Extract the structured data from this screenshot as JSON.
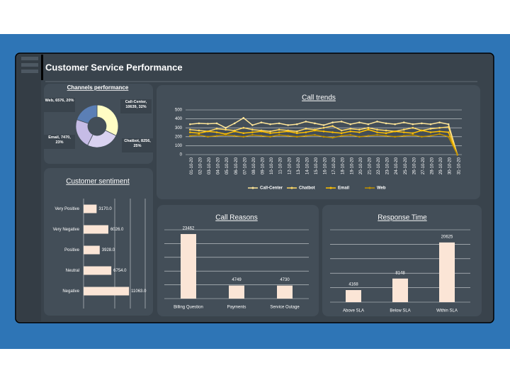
{
  "header": {
    "title": "Customer Service Performance"
  },
  "chart_data": [
    {
      "type": "donut",
      "title": "Channels performance",
      "categories": [
        "Call-Center",
        "Chatbot",
        "Email",
        "Web"
      ],
      "values": [
        10639,
        8256,
        7470,
        6576
      ],
      "value_labels": [
        "Call-Center, 10639, 32%",
        "Chatbot, 8256, 25%",
        "Email, 7470, 23%",
        "Web, 6576, 20%"
      ],
      "colors": [
        "#fffdc4",
        "#d9d2f0",
        "#c6bce6",
        "#5b7fb5"
      ]
    },
    {
      "type": "line",
      "title": "Call trends",
      "x": [
        "01-10-20",
        "02-10-20",
        "03-10-20",
        "04-10-20",
        "05-10-20",
        "06-10-20",
        "07-10-20",
        "08-10-20",
        "09-10-20",
        "10-10-20",
        "11-10-20",
        "12-10-20",
        "13-10-20",
        "14-10-20",
        "15-10-20",
        "16-10-20",
        "17-10-20",
        "18-10-20",
        "19-10-20",
        "20-10-20",
        "21-10-20",
        "22-10-20",
        "23-10-20",
        "24-10-20",
        "25-10-20",
        "26-10-20",
        "27-10-20",
        "28-10-20",
        "29-10-20",
        "30-10-20",
        "31-10-20"
      ],
      "series": [
        {
          "name": "Call-Center",
          "color": "#ffe699",
          "values": [
            340,
            350,
            345,
            350,
            300,
            350,
            410,
            330,
            360,
            340,
            350,
            330,
            340,
            370,
            350,
            330,
            360,
            370,
            340,
            360,
            340,
            370,
            350,
            340,
            360,
            340,
            350,
            340,
            360,
            340,
            0
          ]
        },
        {
          "name": "Chatbot",
          "color": "#ffd966",
          "values": [
            280,
            270,
            260,
            290,
            280,
            270,
            300,
            280,
            270,
            260,
            280,
            270,
            260,
            290,
            280,
            300,
            320,
            270,
            290,
            280,
            300,
            280,
            270,
            260,
            280,
            300,
            270,
            290,
            300,
            310,
            0
          ]
        },
        {
          "name": "Email",
          "color": "#ffc000",
          "values": [
            250,
            240,
            260,
            250,
            230,
            260,
            240,
            250,
            260,
            240,
            250,
            260,
            240,
            250,
            270,
            260,
            250,
            240,
            260,
            250,
            280,
            250,
            240,
            260,
            250,
            240,
            270,
            250,
            260,
            250,
            0
          ]
        },
        {
          "name": "Web",
          "color": "#bf9000",
          "values": [
            210,
            220,
            200,
            210,
            220,
            210,
            200,
            220,
            210,
            200,
            220,
            210,
            200,
            210,
            220,
            200,
            190,
            210,
            220,
            200,
            210,
            220,
            210,
            200,
            210,
            220,
            200,
            210,
            230,
            200,
            0
          ]
        }
      ],
      "ylim": [
        0,
        500
      ],
      "yticks": [
        0,
        100,
        200,
        300,
        400,
        500
      ],
      "grid": true,
      "legend": "bottom"
    },
    {
      "type": "barh",
      "title": "Customer sentiment",
      "categories": [
        "Very Positive",
        "Very Negative",
        "Positive",
        "Neutral",
        "Negative"
      ],
      "values": [
        3170,
        6026,
        3928,
        6754,
        11063
      ],
      "value_labels": [
        "3170.0",
        "6026.0",
        "3928.0",
        "6754.0",
        "11063.0"
      ],
      "color": "#fbe5d6",
      "xlim": [
        0,
        15000
      ]
    },
    {
      "type": "bar",
      "title": "Call Reasons",
      "categories": [
        "Billing Question",
        "Payments",
        "Service Outage"
      ],
      "values": [
        23462,
        4749,
        4730
      ],
      "color": "#fbe5d6",
      "ylim": [
        0,
        25000
      ],
      "grid": true
    },
    {
      "type": "bar",
      "title": "Response Time",
      "categories": [
        "Above SLA",
        "Below SLA",
        "Within SLA"
      ],
      "values": [
        4168,
        8148,
        20625
      ],
      "color": "#fbe5d6",
      "ylim": [
        0,
        25000
      ],
      "grid": true
    }
  ]
}
